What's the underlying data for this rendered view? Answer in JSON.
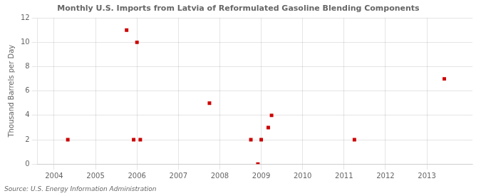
{
  "chart_data": {
    "type": "scatter",
    "title": "Monthly U.S. Imports from Latvia of Reformulated Gasoline Blending Components",
    "ylabel": "Thousand Barrels per Day",
    "annotation": "Source: U.S. Energy Information Administration",
    "x": [
      2004.33,
      2005.75,
      2005.92,
      2006.0,
      2006.08,
      2007.75,
      2008.75,
      2008.92,
      2009.0,
      2009.17,
      2009.25,
      2011.25,
      2013.42
    ],
    "values": [
      2,
      11,
      2,
      10,
      2,
      5,
      2,
      0,
      2,
      3,
      4,
      2,
      7
    ],
    "color": "#cc0000",
    "marker": "square",
    "xlim": [
      2003.6,
      2014.1
    ],
    "xticks": [
      2004,
      2005,
      2006,
      2007,
      2008,
      2009,
      2010,
      2011,
      2012,
      2013
    ],
    "ylim": [
      0,
      12
    ],
    "yticks": [
      0,
      2,
      4,
      6,
      8,
      10,
      12
    ],
    "grid": true
  }
}
